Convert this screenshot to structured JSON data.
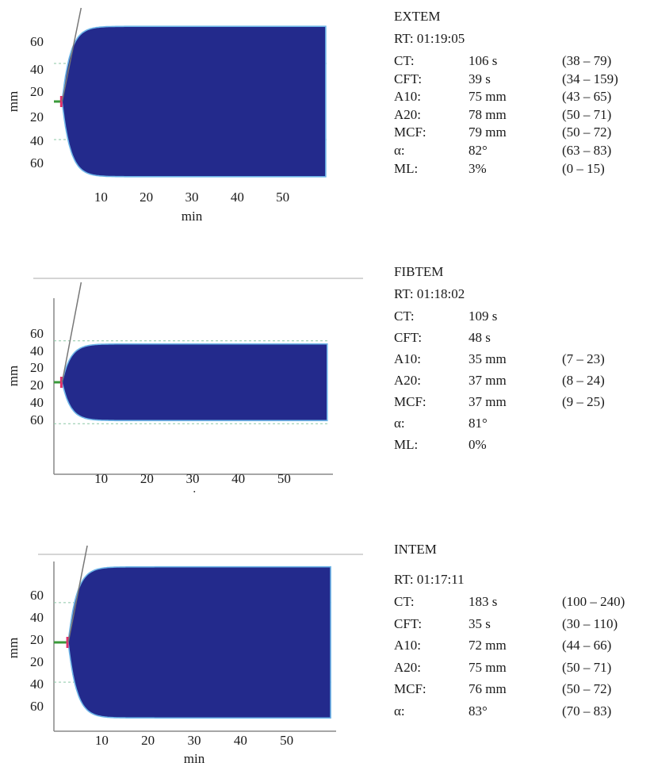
{
  "colors": {
    "trace": "#232a8c",
    "trace_edge": "#6fb6e8",
    "grid": "#8cc7a6",
    "axis": "#888888",
    "start_red": "#e0306a",
    "start_green": "#3a9a3a"
  },
  "chart_data": [
    {
      "type": "area",
      "test": "EXTEM",
      "ylabel": "mm",
      "xlabel": "min",
      "x_ticks": [
        10,
        20,
        30,
        40,
        50
      ],
      "y_ticks": [
        "60",
        "40",
        "20",
        "20",
        "40",
        "60"
      ],
      "xlim": [
        0,
        60
      ],
      "ylim": [
        -75,
        75
      ],
      "curve": {
        "ct_min": 1.8,
        "mcf_mm": 79
      },
      "metrics": {
        "rt": "RT: 01:19:05",
        "rows": [
          {
            "key": "CT:",
            "value": "106 s",
            "range": "(38 – 79)"
          },
          {
            "key": "CFT:",
            "value": "39 s",
            "range": "(34 – 159)"
          },
          {
            "key": "A10:",
            "value": "75 mm",
            "range": "(43 – 65)"
          },
          {
            "key": "A20:",
            "value": "78 mm",
            "range": "(50 – 71)"
          },
          {
            "key": "MCF:",
            "value": "79 mm",
            "range": "(50 – 72)"
          },
          {
            "key": "α:",
            "value": "82°",
            "range": "(63 – 83)"
          },
          {
            "key": "ML:",
            "value": "3%",
            "range": "(0 – 15)"
          }
        ]
      }
    },
    {
      "type": "area",
      "test": "FIBTEM",
      "ylabel": "mm",
      "xlabel": "min",
      "x_ticks": [
        10,
        20,
        30,
        40,
        50
      ],
      "y_ticks": [
        "60",
        "40",
        "20",
        "20",
        "40",
        "60"
      ],
      "xlim": [
        0,
        60
      ],
      "ylim": [
        -75,
        75
      ],
      "curve": {
        "ct_min": 1.8,
        "mcf_mm": 37
      },
      "metrics": {
        "rt": "RT: 01:18:02",
        "rows": [
          {
            "key": "CT:",
            "value": "109 s",
            "range": ""
          },
          {
            "key": "CFT:",
            "value": "48 s",
            "range": ""
          },
          {
            "key": "A10:",
            "value": "35 mm",
            "range": "(7 – 23)"
          },
          {
            "key": "A20:",
            "value": "37 mm",
            "range": "(8 – 24)"
          },
          {
            "key": "MCF:",
            "value": "37 mm",
            "range": "(9 – 25)"
          },
          {
            "key": "α:",
            "value": "81°",
            "range": ""
          },
          {
            "key": "ML:",
            "value": "0%",
            "range": ""
          }
        ]
      }
    },
    {
      "type": "area",
      "test": "INTEM",
      "ylabel": "mm",
      "xlabel": "min",
      "x_ticks": [
        10,
        20,
        30,
        40,
        50
      ],
      "y_ticks": [
        "60",
        "40",
        "20",
        "20",
        "40",
        "60"
      ],
      "xlim": [
        0,
        60
      ],
      "ylim": [
        -75,
        75
      ],
      "curve": {
        "ct_min": 3.1,
        "mcf_mm": 76
      },
      "metrics": {
        "rt": "RT: 01:17:11",
        "rows": [
          {
            "key": "CT:",
            "value": "183 s",
            "range": "(100 – 240)"
          },
          {
            "key": "CFT:",
            "value": "35 s",
            "range": "(30 – 110)"
          },
          {
            "key": "A10:",
            "value": "72 mm",
            "range": "(44 – 66)"
          },
          {
            "key": "A20:",
            "value": "75 mm",
            "range": "(50 – 71)"
          },
          {
            "key": "MCF:",
            "value": "76 mm",
            "range": "(50 – 72)"
          },
          {
            "key": "α:",
            "value": "83°",
            "range": "(70 – 83)"
          }
        ]
      }
    }
  ]
}
